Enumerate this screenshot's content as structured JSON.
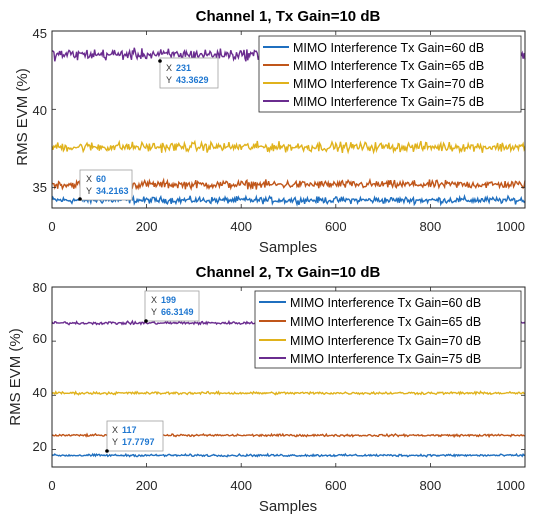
{
  "chart_data": [
    {
      "type": "line",
      "title": "Channel 1, Tx Gain=10 dB",
      "xlabel": "Samples",
      "ylabel": "RMS EVM (%)",
      "xlim": [
        0,
        1000
      ],
      "ylim": [
        33.7,
        45
      ],
      "xticks": [
        "0",
        "200",
        "400",
        "600",
        "800",
        "1000"
      ],
      "yticks": [
        "35",
        "40",
        "45"
      ],
      "grid": false,
      "legend_position": "top-right",
      "series": [
        {
          "name": "MIMO Interference Tx Gain=60 dB",
          "color": "#1f6fbf",
          "mean": 34.2,
          "noise": 0.18
        },
        {
          "name": "MIMO Interference Tx Gain=65 dB",
          "color": "#c0561a",
          "mean": 35.2,
          "noise": 0.22
        },
        {
          "name": "MIMO Interference Tx Gain=70 dB",
          "color": "#e0b21c",
          "mean": 37.6,
          "noise": 0.26
        },
        {
          "name": "MIMO Interference Tx Gain=75 dB",
          "color": "#6a2c8f",
          "mean": 43.5,
          "noise": 0.3
        }
      ],
      "datatips": [
        {
          "x_label": "X",
          "x": "231",
          "y_label": "Y",
          "y": "43.3629"
        },
        {
          "x_label": "X",
          "x": "60",
          "y_label": "Y",
          "y": "34.2163"
        }
      ]
    },
    {
      "type": "line",
      "title": "Channel 2, Tx Gain=10 dB",
      "xlabel": "Samples",
      "ylabel": "RMS EVM (%)",
      "xlim": [
        0,
        1000
      ],
      "ylim": [
        13.5,
        80
      ],
      "xticks": [
        "0",
        "200",
        "400",
        "600",
        "800",
        "1000"
      ],
      "yticks": [
        "20",
        "40",
        "60",
        "80"
      ],
      "grid": false,
      "legend_position": "top-right",
      "series": [
        {
          "name": "MIMO Interference Tx Gain=60 dB",
          "color": "#1f6fbf",
          "mean": 17.8,
          "noise": 0.35
        },
        {
          "name": "MIMO Interference Tx Gain=65 dB",
          "color": "#c0561a",
          "mean": 25.2,
          "noise": 0.35
        },
        {
          "name": "MIMO Interference Tx Gain=70 dB",
          "color": "#e0b21c",
          "mean": 40.8,
          "noise": 0.4
        },
        {
          "name": "MIMO Interference Tx Gain=75 dB",
          "color": "#6a2c8f",
          "mean": 66.7,
          "noise": 0.45
        }
      ],
      "datatips": [
        {
          "x_label": "X",
          "x": "199",
          "y_label": "Y",
          "y": "66.3149"
        },
        {
          "x_label": "X",
          "x": "117",
          "y_label": "Y",
          "y": "17.7797"
        }
      ]
    }
  ]
}
